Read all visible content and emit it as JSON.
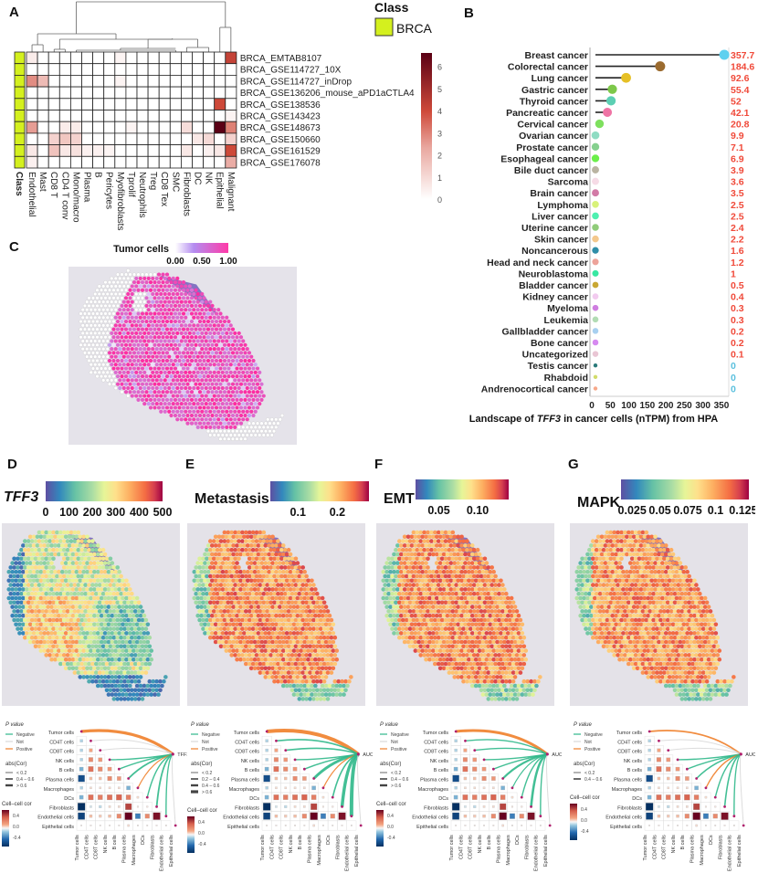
{
  "panels": {
    "A": "A",
    "B": "B",
    "C": "C",
    "D": "D",
    "E": "E",
    "F": "F",
    "G": "G"
  },
  "chart_data": [
    {
      "id": "A",
      "type": "heatmap",
      "title": "",
      "legend_class_title": "Class",
      "legend_class_label": "BRCA",
      "class_color": "#d4f01e",
      "class_axis_label": "Class",
      "colorbar_ticks": [
        "0",
        "1",
        "2",
        "3",
        "4",
        "5",
        "6"
      ],
      "colorbar_range": [
        0,
        6.6
      ],
      "columns": [
        "Endothelial",
        "Mast",
        "CD8 T",
        "CD4 T conv",
        "Mono/macro",
        "Plasma",
        "B",
        "Pericytes",
        "Myofibroblasts",
        "Tprolif",
        "Neutrophils",
        "Treg",
        "CD8 Tex",
        "SMC",
        "Fibroblasts",
        "DC",
        "NK",
        "Epithelial",
        "Malignant"
      ],
      "rows": [
        "BRCA_EMTAB8107",
        "BRCA_GSE114727_10X",
        "BRCA_GSE114727_inDrop",
        "BRCA_GSE136206_mouse_aPD1aCTLA4",
        "BRCA_GSE138536",
        "BRCA_GSE143423",
        "BRCA_GSE148673",
        "BRCA_GSE150660",
        "BRCA_GSE161529",
        "BRCA_GSE176078"
      ],
      "values": [
        [
          0.5,
          0,
          0,
          0,
          0,
          0,
          0,
          0,
          0.3,
          0,
          0,
          0,
          0,
          0,
          0,
          0,
          0,
          0,
          4.2
        ],
        [
          0,
          0,
          0,
          0,
          0,
          0,
          0,
          0,
          0,
          0,
          0,
          0,
          0,
          0,
          0,
          0,
          0,
          0,
          0
        ],
        [
          2.8,
          1.8,
          0,
          0,
          0,
          0,
          0,
          0,
          0.3,
          0,
          0,
          0,
          0,
          0,
          0,
          0,
          0,
          0,
          0
        ],
        [
          0,
          0,
          0,
          0,
          0,
          0,
          0,
          0,
          0,
          0,
          0,
          0,
          0,
          0,
          0,
          0,
          0,
          0,
          0
        ],
        [
          0,
          0,
          0,
          0,
          0,
          0,
          0,
          0,
          0,
          0,
          0,
          0,
          0,
          0,
          0,
          0,
          0,
          4.0,
          0
        ],
        [
          0,
          0,
          0,
          0,
          0,
          0,
          0,
          0,
          0,
          0,
          0,
          0,
          0,
          0,
          0,
          0,
          0,
          0,
          0.3
        ],
        [
          2.5,
          0,
          0,
          0.5,
          0.5,
          0,
          0,
          0,
          0,
          0.3,
          0,
          0,
          0,
          0,
          0.9,
          0,
          0,
          6.6,
          3.0
        ],
        [
          0,
          0,
          1.2,
          1.5,
          1.2,
          0,
          0,
          0,
          0,
          0,
          0,
          0,
          0,
          0,
          0,
          0.6,
          1.0,
          0,
          1.2
        ],
        [
          0.6,
          0,
          1.6,
          0.6,
          0.8,
          0.4,
          0.4,
          0.3,
          0,
          0,
          0,
          0,
          0,
          0,
          0.6,
          0,
          0.4,
          0.6,
          4.0
        ],
        [
          0.4,
          0,
          0,
          0,
          0,
          0,
          0,
          0,
          0,
          0,
          0,
          0,
          0,
          0,
          0,
          0,
          0,
          0,
          2.2
        ]
      ]
    },
    {
      "id": "B",
      "type": "scatter",
      "subtype": "lollipop",
      "xlabel_prefix": "Landscape of ",
      "xlabel_gene": "TFF3",
      "xlabel_suffix": " in cancer cells (nTPM) from HPA",
      "xlim": [
        0,
        360
      ],
      "xticks": [
        "0",
        "50",
        "100",
        "150",
        "200",
        "250",
        "300",
        "350"
      ],
      "xtick_values": [
        0,
        50,
        100,
        150,
        200,
        250,
        300,
        350
      ],
      "categories": [
        "Breast cancer",
        "Colorectal cancer",
        "Lung cancer",
        "Gastric cancer",
        "Thyroid cancer",
        "Pancreatic cancer",
        "Cervical cancer",
        "Ovarian cancer",
        "Prostate cancer",
        "Esophageal cancer",
        "Bile duct cancer",
        "Sarcoma",
        "Brain cancer",
        "Lymphoma",
        "Liver cancer",
        "Uterine cancer",
        "Skin cancer",
        "Noncancerous",
        "Head and neck cancer",
        "Neuroblastoma",
        "Bladder cancer",
        "Kidney cancer",
        "Myeloma",
        "Leukemia",
        "Gallbladder cancer",
        "Bone cancer",
        "Uncategorized",
        "Testis cancer",
        "Rhabdoid",
        "Andrenocortical cancer"
      ],
      "values": [
        357.7,
        184.6,
        92.6,
        55.4,
        52,
        42.1,
        20.8,
        9.9,
        7.1,
        6.9,
        3.9,
        3.6,
        3.5,
        2.5,
        2.5,
        2.4,
        2.2,
        1.6,
        1.2,
        1,
        0.5,
        0.4,
        0.3,
        0.3,
        0.2,
        0.2,
        0.1,
        0,
        0,
        0
      ],
      "value_labels": [
        "357.7",
        "184.6",
        "92.6",
        "55.4",
        "52",
        "42.1",
        "20.8",
        "9.9",
        "7.1",
        "6.9",
        "3.9",
        "3.6",
        "3.5",
        "2.5",
        "2.5",
        "2.4",
        "2.2",
        "1.6",
        "1.2",
        "1",
        "0.5",
        "0.4",
        "0.3",
        "0.3",
        "0.2",
        "0.2",
        "0.1",
        "0",
        "0",
        "0"
      ],
      "colors": [
        "#5fd0ef",
        "#9b6b2f",
        "#e6c026",
        "#7dc84a",
        "#5ccfb3",
        "#ef74a5",
        "#7ee05e",
        "#8fdcc3",
        "#86d08f",
        "#6bef4a",
        "#bab4a2",
        "#f6dbe6",
        "#d27aa6",
        "#d8f27a",
        "#4ef0b0",
        "#90cc7a",
        "#f4c88c",
        "#2f8ea8",
        "#eda39a",
        "#38e8a2",
        "#c9a834",
        "#f2cbef",
        "#cf7ee0",
        "#b2dcb4",
        "#a8d0f0",
        "#d68af0",
        "#e9c6d4",
        "#2a7a7a",
        "#d2dc6a",
        "#f7a88a"
      ],
      "label_color_positive": "#f04a3a",
      "label_color_zero": "#5bc0de"
    },
    {
      "id": "C",
      "type": "heatmap",
      "subtype": "spatial",
      "legend_title": "Tumor cells",
      "legend_ticks": [
        "0.00",
        "0.50",
        "1.00"
      ],
      "legend_range": [
        0,
        1
      ]
    },
    {
      "id": "D",
      "type": "heatmap",
      "subtype": "spatial",
      "legend_title": "TFF3",
      "legend_ticks": [
        "0",
        "100",
        "200",
        "300",
        "400",
        "500"
      ],
      "legend_range": [
        0,
        500
      ]
    },
    {
      "id": "E",
      "type": "heatmap",
      "subtype": "spatial",
      "legend_title": "Metastasis",
      "legend_ticks": [
        "0.1",
        "0.2"
      ],
      "legend_range": [
        0.03,
        0.28
      ]
    },
    {
      "id": "F",
      "type": "heatmap",
      "subtype": "spatial",
      "legend_title": "EMT",
      "legend_ticks": [
        "0.05",
        "0.10"
      ],
      "legend_range": [
        0.02,
        0.14
      ]
    },
    {
      "id": "G",
      "type": "heatmap",
      "subtype": "spatial",
      "legend_title": "MAPK",
      "legend_ticks": [
        "0.025",
        "0.05",
        "0.075",
        "0.1",
        "0.125"
      ],
      "legend_range": [
        0.015,
        0.13
      ]
    }
  ],
  "correlation_panels": {
    "cells": [
      "Tumor cells",
      "CD4T cells",
      "CD8T cells",
      "NK cells",
      "B cells",
      "Plasma cells",
      "Macrophages",
      "DCs",
      "Fibroblasts",
      "Endothelial cells",
      "Epithelial cells"
    ],
    "pvalue_title": "P value",
    "pvalue_items": [
      "Negative",
      "Not",
      "Positive"
    ],
    "pvalue_colors": [
      "#2fb88a",
      "#d8d8d8",
      "#f07f2a"
    ],
    "abscor_title": "abs(Cor)",
    "cellcor_title": "Cell–cell cor",
    "cellcor_ticks": [
      "0.4",
      "0.0",
      "-0.4"
    ],
    "lower_matrix": [
      [],
      [
        -0.1
      ],
      [
        -0.1,
        0.15
      ],
      [
        -0.1,
        0.25,
        0.2
      ],
      [
        -0.2,
        0.35,
        0.25,
        0.2
      ],
      [
        -0.55,
        0.1,
        0.1,
        0.25,
        0.2
      ],
      [
        -0.1,
        0.05,
        0.05,
        0.05,
        0.05,
        -0.2
      ],
      [
        -0.2,
        0.35,
        0.3,
        0.35,
        0.4,
        0.3,
        0.05
      ],
      [
        -0.7,
        -0.05,
        -0.08,
        0.05,
        0.05,
        0.5,
        0.03,
        0.03
      ],
      [
        -0.6,
        0.1,
        0.08,
        0.1,
        0.25,
        0.7,
        -0.35,
        0.25,
        0.65
      ],
      [
        0.02,
        0.02,
        0.02,
        0.02,
        0.02,
        0.05,
        0.02,
        0.02,
        0.02,
        0.02
      ]
    ],
    "panels": [
      {
        "id": "D",
        "target": "TFF3",
        "abscor_items": [
          "< 0.2",
          "0.4 – 0.6",
          "> 0.6"
        ],
        "links": [
          {
            "cell": 0,
            "type": 2,
            "w": 3.2
          },
          {
            "cell": 1,
            "type": 1,
            "w": 1
          },
          {
            "cell": 2,
            "type": 1,
            "w": 1
          },
          {
            "cell": 3,
            "type": 0,
            "w": 1.4
          },
          {
            "cell": 4,
            "type": 0,
            "w": 1.4
          },
          {
            "cell": 5,
            "type": 0,
            "w": 1.8
          },
          {
            "cell": 6,
            "type": 2,
            "w": 1.2
          },
          {
            "cell": 7,
            "type": 0,
            "w": 1.4
          },
          {
            "cell": 8,
            "type": 0,
            "w": 1.8
          },
          {
            "cell": 9,
            "type": 0,
            "w": 1.4
          },
          {
            "cell": 10,
            "type": 1,
            "w": 1
          }
        ]
      },
      {
        "id": "E",
        "target": "AUC",
        "abscor_items": [
          "< 0.2",
          "0.2 – 0.4",
          "0.4 – 0.6",
          "> 0.6"
        ],
        "links": [
          {
            "cell": 0,
            "type": 2,
            "w": 4
          },
          {
            "cell": 1,
            "type": 0,
            "w": 1.6
          },
          {
            "cell": 2,
            "type": 0,
            "w": 1.6
          },
          {
            "cell": 3,
            "type": 0,
            "w": 1.4
          },
          {
            "cell": 4,
            "type": 0,
            "w": 1.4
          },
          {
            "cell": 5,
            "type": 0,
            "w": 3
          },
          {
            "cell": 6,
            "type": 2,
            "w": 1.2
          },
          {
            "cell": 7,
            "type": 0,
            "w": 1.6
          },
          {
            "cell": 8,
            "type": 0,
            "w": 3.5
          },
          {
            "cell": 9,
            "type": 0,
            "w": 4
          },
          {
            "cell": 10,
            "type": 1,
            "w": 1
          }
        ]
      },
      {
        "id": "F",
        "target": "AUC",
        "abscor_items": [
          "< 0.2",
          "0.4 – 0.6",
          "> 0.6"
        ],
        "links": [
          {
            "cell": 0,
            "type": 2,
            "w": 3
          },
          {
            "cell": 1,
            "type": 0,
            "w": 1.4
          },
          {
            "cell": 2,
            "type": 0,
            "w": 1.4
          },
          {
            "cell": 3,
            "type": 0,
            "w": 1.4
          },
          {
            "cell": 4,
            "type": 0,
            "w": 1.4
          },
          {
            "cell": 5,
            "type": 0,
            "w": 2.2
          },
          {
            "cell": 6,
            "type": 0,
            "w": 1.2
          },
          {
            "cell": 7,
            "type": 0,
            "w": 1.4
          },
          {
            "cell": 8,
            "type": 0,
            "w": 2.6
          },
          {
            "cell": 9,
            "type": 0,
            "w": 1.4
          },
          {
            "cell": 10,
            "type": 1,
            "w": 1
          }
        ]
      },
      {
        "id": "G",
        "target": "AUC",
        "abscor_items": [
          "< 0.2",
          "0.4 – 0.6"
        ],
        "links": [
          {
            "cell": 0,
            "type": 2,
            "w": 1.8
          },
          {
            "cell": 1,
            "type": 1,
            "w": 1
          },
          {
            "cell": 2,
            "type": 1,
            "w": 1
          },
          {
            "cell": 3,
            "type": 0,
            "w": 1.4
          },
          {
            "cell": 4,
            "type": 0,
            "w": 1.4
          },
          {
            "cell": 5,
            "type": 0,
            "w": 1.6
          },
          {
            "cell": 6,
            "type": 2,
            "w": 1.4
          },
          {
            "cell": 7,
            "type": 0,
            "w": 1.4
          },
          {
            "cell": 8,
            "type": 0,
            "w": 1.6
          },
          {
            "cell": 9,
            "type": 0,
            "w": 1.4
          },
          {
            "cell": 10,
            "type": 1,
            "w": 1
          }
        ]
      }
    ]
  }
}
